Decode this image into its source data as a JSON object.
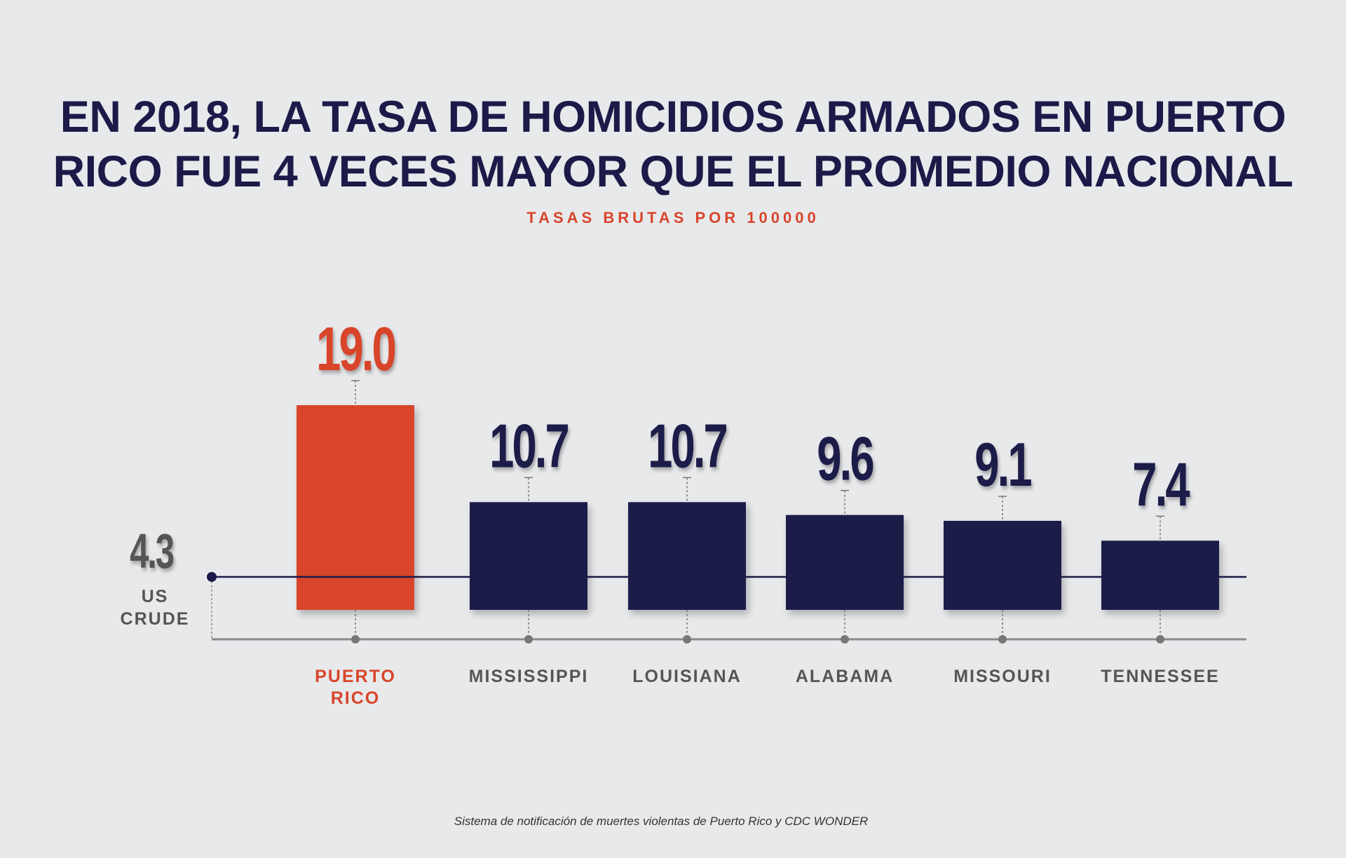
{
  "header": {
    "title_line1": "EN 2018, LA TASA DE HOMICIDIOS ARMADOS EN PUERTO",
    "title_line2": "RICO FUE 4 VECES MAYOR QUE EL PROMEDIO NACIONAL",
    "subtitle": "TASAS BRUTAS POR 100000"
  },
  "footer": {
    "source": "Sistema de notificación de muertes violentas de Puerto Rico y CDC WONDER"
  },
  "colors": {
    "background": "#e8e9eb",
    "highlight": "#d8452b",
    "bars": "#1b1a48",
    "reference": "#555555",
    "axis": "#8a8a8a"
  },
  "chart_data": {
    "type": "bar",
    "categories": [
      "PUERTO RICO",
      "MISSISSIPPI",
      "LOUISIANA",
      "ALABAMA",
      "MISSOURI",
      "TENNESSEE"
    ],
    "category_lines": [
      [
        "PUERTO",
        "RICO"
      ],
      [
        "MISSISSIPPI"
      ],
      [
        "LOUISIANA"
      ],
      [
        "ALABAMA"
      ],
      [
        "MISSOURI"
      ],
      [
        "TENNESSEE"
      ]
    ],
    "values": [
      19.0,
      10.7,
      10.7,
      9.6,
      9.1,
      7.4
    ],
    "value_labels": [
      "19.0",
      "10.7",
      "10.7",
      "9.6",
      "9.1",
      "7.4"
    ],
    "highlight_index": 0,
    "reference": {
      "value": 4.3,
      "value_label": "4.3",
      "label_lines": [
        "US",
        "CRUDE"
      ]
    },
    "ylim": [
      0,
      19.0
    ],
    "grid": false,
    "legend": "none",
    "title": "EN 2018, LA TASA DE HOMICIDIOS ARMADOS EN PUERTO RICO FUE 4 VECES MAYOR QUE EL PROMEDIO NACIONAL",
    "subtitle": "TASAS BRUTAS POR 100000"
  }
}
